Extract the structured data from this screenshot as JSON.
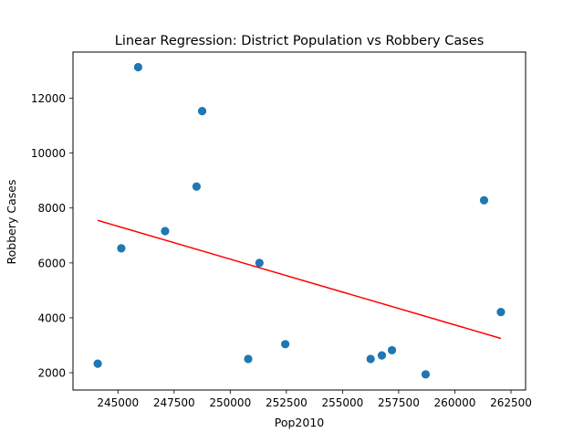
{
  "chart_data": {
    "type": "scatter",
    "title": "Linear Regression: District Population vs Robbery Cases",
    "xlabel": "Pop2010",
    "ylabel": "Robbery Cases",
    "xlim": [
      243000,
      263150
    ],
    "ylim": [
      1370,
      13680
    ],
    "xticks": [
      245000,
      247500,
      250000,
      252500,
      255000,
      257500,
      260000,
      262500
    ],
    "xtick_labels": [
      "245000",
      "247500",
      "250000",
      "252500",
      "255000",
      "257500",
      "260000",
      "262500"
    ],
    "yticks": [
      2000,
      4000,
      6000,
      8000,
      10000,
      12000
    ],
    "ytick_labels": [
      "2000",
      "4000",
      "6000",
      "8000",
      "10000",
      "12000"
    ],
    "grid": false,
    "legend": "none",
    "point_color": "#1f77b4",
    "line_color": "#ff0000",
    "points": [
      {
        "x": 244100,
        "y": 2330
      },
      {
        "x": 245150,
        "y": 6530
      },
      {
        "x": 245900,
        "y": 13130
      },
      {
        "x": 247100,
        "y": 7160
      },
      {
        "x": 248500,
        "y": 8780
      },
      {
        "x": 248750,
        "y": 11530
      },
      {
        "x": 250800,
        "y": 2500
      },
      {
        "x": 251300,
        "y": 6000
      },
      {
        "x": 252450,
        "y": 3040
      },
      {
        "x": 256250,
        "y": 2500
      },
      {
        "x": 256750,
        "y": 2630
      },
      {
        "x": 257200,
        "y": 2820
      },
      {
        "x": 258700,
        "y": 1940
      },
      {
        "x": 261300,
        "y": 8280
      },
      {
        "x": 262050,
        "y": 4210
      }
    ],
    "regression_line": [
      {
        "x": 244100,
        "y": 7550
      },
      {
        "x": 262050,
        "y": 3250
      }
    ]
  }
}
